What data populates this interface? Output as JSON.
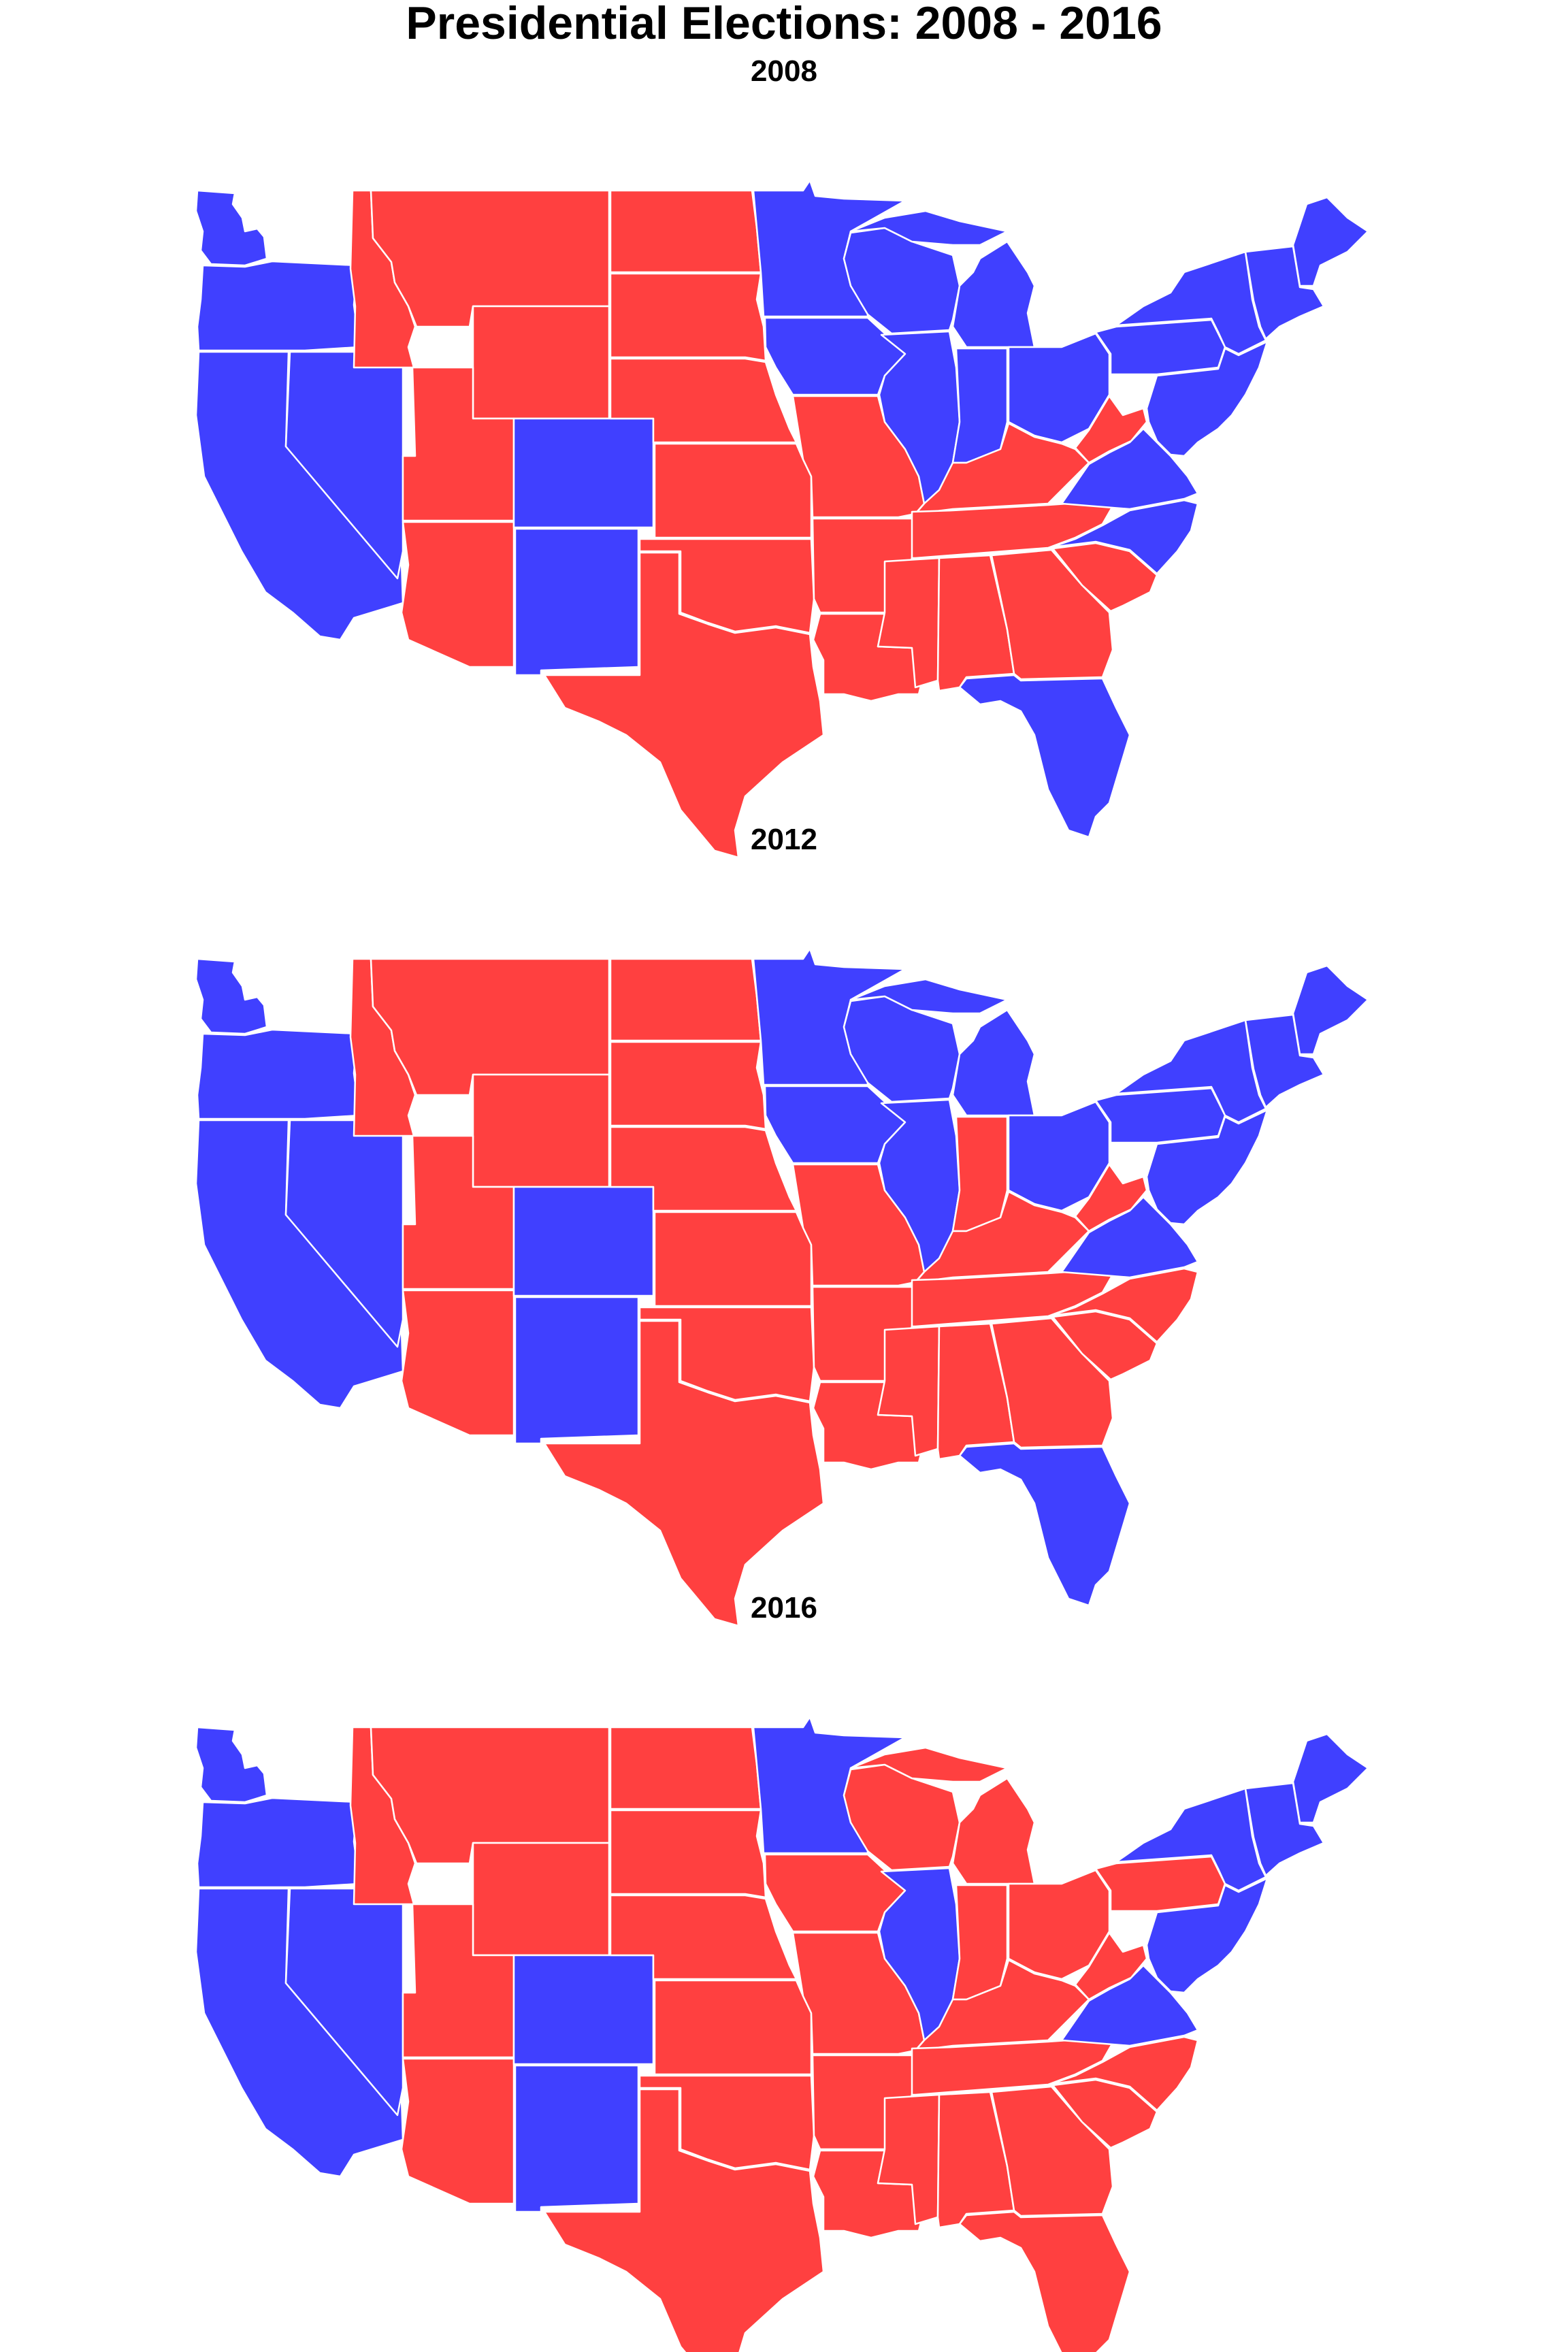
{
  "title": "Presidential Elections: 2008 - 2016",
  "colors": {
    "dem": "#4040ff",
    "rep": "#ff4040",
    "border": "#ffffff"
  },
  "maps": [
    {
      "year": "2008",
      "winners": {
        "WA": "dem",
        "OR": "dem",
        "CA": "dem",
        "NV": "dem",
        "ID": "rep",
        "MT": "rep",
        "WY": "rep",
        "UT": "rep",
        "AZ": "rep",
        "CO": "dem",
        "NM": "dem",
        "ND": "rep",
        "SD": "rep",
        "NE": "rep",
        "KS": "rep",
        "OK": "rep",
        "TX": "rep",
        "MN": "dem",
        "IA": "dem",
        "MO": "rep",
        "AR": "rep",
        "LA": "rep",
        "WI": "dem",
        "IL": "dem",
        "MI": "dem",
        "IN": "dem",
        "OH": "dem",
        "KY": "rep",
        "TN": "rep",
        "MS": "rep",
        "AL": "rep",
        "GA": "rep",
        "FL": "dem",
        "SC": "rep",
        "NC": "dem",
        "VA": "dem",
        "WV": "rep",
        "PA": "dem",
        "NY": "dem",
        "ME": "dem",
        "NE_STATES": "dem",
        "MIDATL": "dem"
      }
    },
    {
      "year": "2012",
      "winners": {
        "WA": "dem",
        "OR": "dem",
        "CA": "dem",
        "NV": "dem",
        "ID": "rep",
        "MT": "rep",
        "WY": "rep",
        "UT": "rep",
        "AZ": "rep",
        "CO": "dem",
        "NM": "dem",
        "ND": "rep",
        "SD": "rep",
        "NE": "rep",
        "KS": "rep",
        "OK": "rep",
        "TX": "rep",
        "MN": "dem",
        "IA": "dem",
        "MO": "rep",
        "AR": "rep",
        "LA": "rep",
        "WI": "dem",
        "IL": "dem",
        "MI": "dem",
        "IN": "rep",
        "OH": "dem",
        "KY": "rep",
        "TN": "rep",
        "MS": "rep",
        "AL": "rep",
        "GA": "rep",
        "FL": "dem",
        "SC": "rep",
        "NC": "rep",
        "VA": "dem",
        "WV": "rep",
        "PA": "dem",
        "NY": "dem",
        "ME": "dem",
        "NE_STATES": "dem",
        "MIDATL": "dem"
      }
    },
    {
      "year": "2016",
      "winners": {
        "WA": "dem",
        "OR": "dem",
        "CA": "dem",
        "NV": "dem",
        "ID": "rep",
        "MT": "rep",
        "WY": "rep",
        "UT": "rep",
        "AZ": "rep",
        "CO": "dem",
        "NM": "dem",
        "ND": "rep",
        "SD": "rep",
        "NE": "rep",
        "KS": "rep",
        "OK": "rep",
        "TX": "rep",
        "MN": "dem",
        "IA": "rep",
        "MO": "rep",
        "AR": "rep",
        "LA": "rep",
        "WI": "rep",
        "IL": "dem",
        "MI": "rep",
        "IN": "rep",
        "OH": "rep",
        "KY": "rep",
        "TN": "rep",
        "MS": "rep",
        "AL": "rep",
        "GA": "rep",
        "FL": "rep",
        "SC": "rep",
        "NC": "rep",
        "VA": "dem",
        "WV": "rep",
        "PA": "rep",
        "NY": "dem",
        "ME": "dem",
        "NE_STATES": "dem",
        "MIDATL": "dem"
      }
    }
  ]
}
